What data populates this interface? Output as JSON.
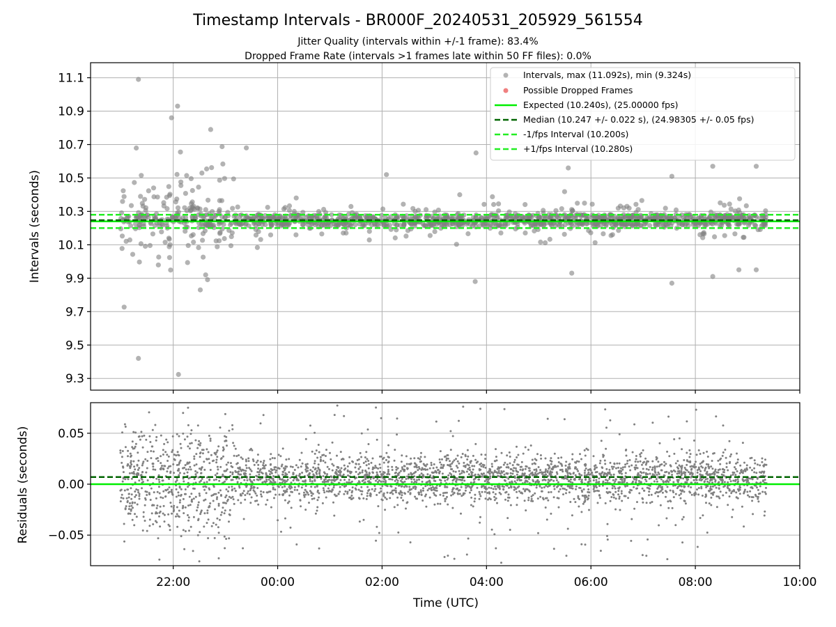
{
  "title": "Timestamp Intervals - BR000F_20240531_205929_561554",
  "subtitle_1": "Jitter Quality (intervals within +/-1 frame): 83.4%",
  "subtitle_2": "Dropped Frame Rate (intervals >1 frames late within 50 FF files): 0.0%",
  "colors": {
    "points": "#808080",
    "dropped": "#f08080",
    "expected": "#00ee00",
    "median": "#006400",
    "interval": "#22ee22",
    "grid": "#b0b0b0"
  },
  "chart_data": [
    {
      "type": "scatter",
      "ylabel": "Intervals (seconds)",
      "xlim": [
        "20:25",
        "10:00"
      ],
      "ylim": [
        9.23,
        11.19
      ],
      "yticks": [
        "9.3",
        "9.5",
        "9.7",
        "9.9",
        "10.1",
        "10.3",
        "10.5",
        "10.7",
        "10.9",
        "11.1"
      ],
      "grid": true,
      "legend_position": "top-right",
      "legend": [
        {
          "label": "Intervals, max (11.092s), min (9.324s)",
          "style": "point"
        },
        {
          "label": "Possible Dropped Frames",
          "style": "dropped-point"
        },
        {
          "label": "Expected (10.240s), (25.00000 fps)",
          "style": "solid"
        },
        {
          "label": "Median (10.247 +/- 0.022 s), (24.98305 +/- 0.05 fps)",
          "style": "dashed-dark"
        },
        {
          "label": "-1/fps Interval (10.200s)",
          "style": "dashed-light"
        },
        {
          "label": "+1/fps Interval (10.280s)",
          "style": "dashed-light"
        }
      ],
      "reference_lines": {
        "expected": 10.24,
        "median": 10.247,
        "minus_one_frame": 10.2,
        "plus_one_frame": 10.28
      },
      "series_summary": {
        "name": "Intervals",
        "x_range": [
          "20:59",
          "09:22"
        ],
        "max": 11.092,
        "min": 9.324,
        "median": 10.247,
        "spread": 0.022
      },
      "highlight_points": [
        {
          "x": "21:20",
          "y": 11.09
        },
        {
          "x": "21:20",
          "y": 9.42
        },
        {
          "x": "22:06",
          "y": 9.324
        },
        {
          "x": "22:05",
          "y": 10.93
        },
        {
          "x": "21:58",
          "y": 10.86
        },
        {
          "x": "22:43",
          "y": 10.79
        },
        {
          "x": "23:24",
          "y": 10.68
        },
        {
          "x": "02:05",
          "y": 10.52
        },
        {
          "x": "03:48",
          "y": 10.65
        },
        {
          "x": "03:47",
          "y": 9.88
        },
        {
          "x": "05:34",
          "y": 10.56
        },
        {
          "x": "07:33",
          "y": 10.51
        },
        {
          "x": "07:33",
          "y": 9.87
        },
        {
          "x": "08:20",
          "y": 10.57
        },
        {
          "x": "08:20",
          "y": 9.91
        },
        {
          "x": "09:10",
          "y": 10.57
        },
        {
          "x": "09:10",
          "y": 9.95
        },
        {
          "x": "08:50",
          "y": 9.95
        },
        {
          "x": "05:38",
          "y": 9.93
        }
      ]
    },
    {
      "type": "scatter",
      "xlabel": "Time (UTC)",
      "ylabel": "Residuals (seconds)",
      "xticks": [
        "22:00",
        "00:00",
        "02:00",
        "04:00",
        "06:00",
        "08:00",
        "10:00"
      ],
      "ylim": [
        -0.08,
        0.08
      ],
      "yticks": [
        "−0.05",
        "0.00",
        "0.05"
      ],
      "grid": true,
      "reference_lines": {
        "expected": 0.0,
        "median": 0.007
      },
      "series_summary": {
        "name": "Residuals",
        "x_range": [
          "20:59",
          "09:22"
        ],
        "y_band": [
          -0.03,
          0.04
        ]
      }
    }
  ]
}
